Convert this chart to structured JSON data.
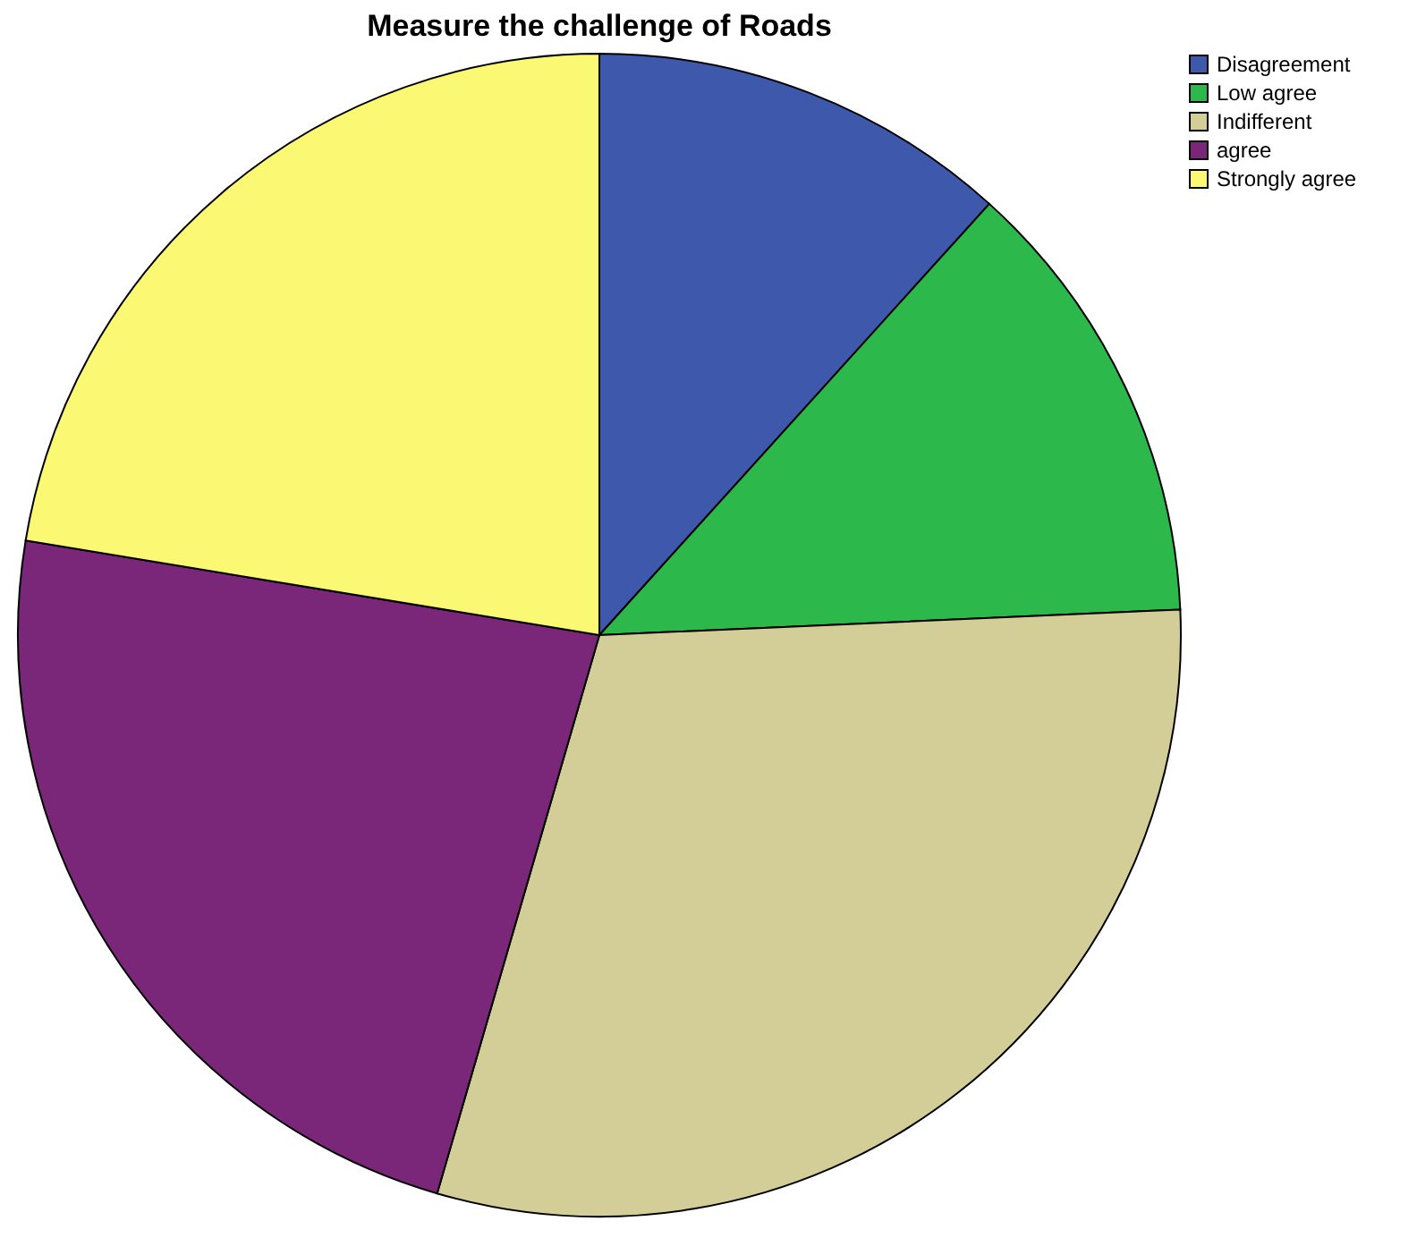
{
  "chart_data": {
    "type": "pie",
    "title": "Measure the challenge of Roads",
    "categories": [
      "Disagreement",
      "Low agree",
      "Indifferent",
      "agree",
      "Strongly agree"
    ],
    "values": [
      11.7,
      12.6,
      30.2,
      23.1,
      22.4
    ],
    "colors": [
      "#3e58ac",
      "#2db84b",
      "#d3ce97",
      "#7a2679",
      "#fbf873"
    ],
    "legend": "top right"
  }
}
